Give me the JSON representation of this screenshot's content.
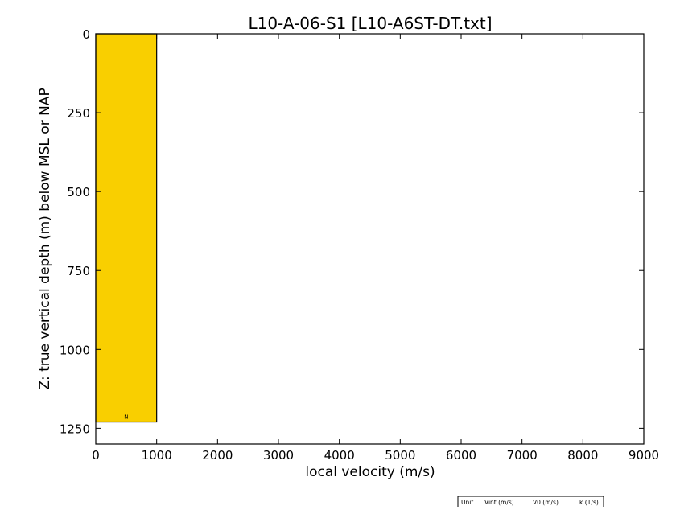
{
  "chart_data": {
    "type": "bar",
    "title": "L10-A-06-S1 [L10-A6ST-DT.txt]",
    "xlabel": "local velocity (m/s)",
    "ylabel": "Z: true vertical depth (m) below MSL or NAP",
    "xlim": [
      0,
      9000
    ],
    "ylim": [
      1300,
      0
    ],
    "y_inverted": true,
    "x_ticks": [
      0,
      1000,
      2000,
      3000,
      4000,
      5000,
      6000,
      7000,
      8000,
      9000
    ],
    "y_ticks": [
      0,
      250,
      500,
      750,
      1000,
      1250
    ],
    "grid": false,
    "layers": [
      {
        "unit": "N",
        "z_top": 0,
        "z_bottom": 1230,
        "velocity": 1000,
        "color": "#f9cf00"
      }
    ],
    "horizontal_lines": [
      {
        "z": 1230,
        "color": "#cccccc"
      }
    ],
    "legend_table": {
      "columns": [
        "Unit",
        "Vint (m/s)",
        "V0 (m/s)",
        "k (1/s)"
      ],
      "rows": []
    }
  }
}
